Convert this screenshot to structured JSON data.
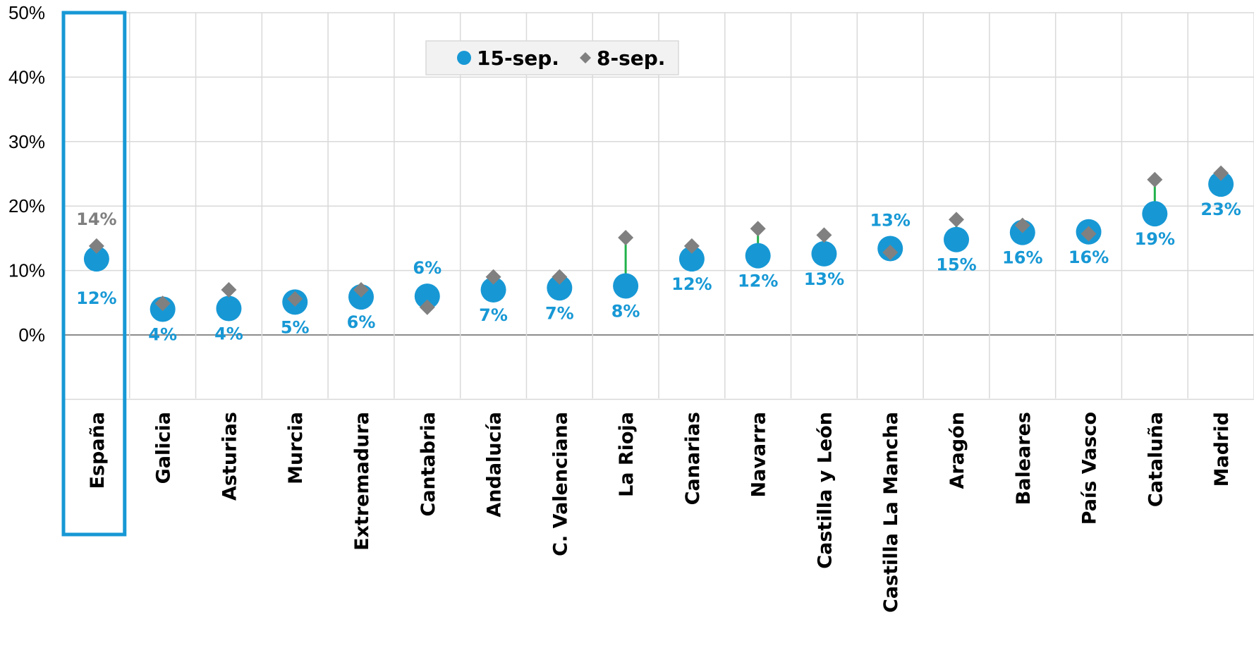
{
  "chart_data": {
    "type": "scatter",
    "categories": [
      "España",
      "Galicia",
      "Asturias",
      "Murcia",
      "Extremadura",
      "Cantabria",
      "Andalucía",
      "C. Valenciana",
      "La Rioja",
      "Canarias",
      "Navarra",
      "Castilla y León",
      "Castilla La Mancha",
      "Aragón",
      "Baleares",
      "País Vasco",
      "Cataluña",
      "Madrid"
    ],
    "series": [
      {
        "name": "15-sep.",
        "marker": "circle",
        "color": "#1798d5",
        "values": [
          11.8,
          4.0,
          4.1,
          5.1,
          5.9,
          6.0,
          7.0,
          7.3,
          7.6,
          11.8,
          12.3,
          12.6,
          13.4,
          14.8,
          15.9,
          16.0,
          18.8,
          23.4
        ],
        "labels": [
          "12%",
          "4%",
          "4%",
          "5%",
          "6%",
          "6%",
          "7%",
          "7%",
          "8%",
          "12%",
          "12%",
          "13%",
          "13%",
          "15%",
          "16%",
          "16%",
          "19%",
          "23%"
        ]
      },
      {
        "name": "8-sep.",
        "marker": "diamond",
        "color": "#808080",
        "values": [
          13.8,
          4.9,
          7.0,
          5.6,
          7.0,
          4.3,
          9.0,
          9.0,
          15.1,
          13.8,
          16.5,
          15.5,
          12.8,
          17.9,
          17.0,
          15.7,
          24.1,
          25.1
        ],
        "labels": [
          "14%",
          "",
          "",
          "",
          "",
          "",
          "",
          "",
          "",
          "",
          "",
          "",
          "",
          "",
          "",
          "",
          "",
          ""
        ]
      }
    ],
    "connector_color": "#21b24b",
    "yticks": [
      "0%",
      "10%",
      "20%",
      "30%",
      "40%",
      "50%"
    ],
    "ylim": [
      -10,
      50
    ],
    "grid": true,
    "legend": "top-center",
    "highlight_category": "España",
    "highlight_color": "#1798d5"
  }
}
